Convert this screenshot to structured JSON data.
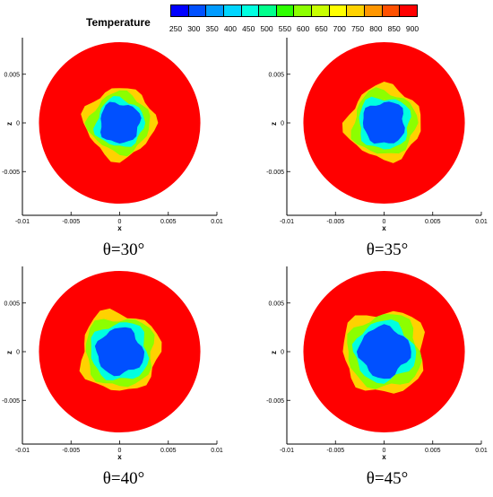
{
  "legend": {
    "title": "Temperature",
    "ticks": [
      "250",
      "300",
      "350",
      "400",
      "450",
      "500",
      "550",
      "600",
      "650",
      "700",
      "750",
      "800",
      "850",
      "900"
    ],
    "colors": [
      "#0000ff",
      "#0050ff",
      "#009bff",
      "#00d5ff",
      "#00ffe0",
      "#00ff8c",
      "#2eff00",
      "#8cff00",
      "#c8ff00",
      "#ffff00",
      "#ffd200",
      "#ff9600",
      "#ff5000",
      "#ff0000"
    ]
  },
  "chart_data": [
    {
      "type": "heatmap",
      "title": "θ=30°",
      "xlabel": "x",
      "ylabel": "z",
      "xlim": [
        -0.01,
        0.01
      ],
      "ylim": [
        -0.008,
        0.008
      ],
      "xticks": [
        "-0.01",
        "-0.005",
        "0",
        "0.005",
        "0.01"
      ],
      "yticks": [
        "0.005",
        "0",
        "-0.005"
      ],
      "domain_radius": 0.0083,
      "contour_levels": [
        {
          "temperature": 900,
          "radius": 0.0083
        },
        {
          "temperature": 750,
          "radius": 0.0036
        },
        {
          "temperature": 600,
          "radius": 0.0031
        },
        {
          "temperature": 450,
          "radius": 0.0025
        },
        {
          "temperature": 300,
          "radius": 0.0021
        }
      ]
    },
    {
      "type": "heatmap",
      "title": "θ=35°",
      "xlabel": "x",
      "ylabel": "z",
      "xlim": [
        -0.01,
        0.01
      ],
      "ylim": [
        -0.008,
        0.008
      ],
      "xticks": [
        "-0.01",
        "-0.005",
        "0",
        "0.005",
        "0.01"
      ],
      "yticks": [
        "0.005",
        "0",
        "-0.005"
      ],
      "domain_radius": 0.0083,
      "contour_levels": [
        {
          "temperature": 900,
          "radius": 0.0083
        },
        {
          "temperature": 750,
          "radius": 0.0038
        },
        {
          "temperature": 600,
          "radius": 0.0033
        },
        {
          "temperature": 450,
          "radius": 0.0027
        },
        {
          "temperature": 300,
          "radius": 0.0022
        }
      ]
    },
    {
      "type": "heatmap",
      "title": "θ=40°",
      "xlabel": "x",
      "ylabel": "z",
      "xlim": [
        -0.01,
        0.01
      ],
      "ylim": [
        -0.008,
        0.008
      ],
      "xticks": [
        "-0.01",
        "-0.005",
        "0",
        "0.005",
        "0.01"
      ],
      "yticks": [
        "0.005",
        "0",
        "-0.005"
      ],
      "domain_radius": 0.0083,
      "contour_levels": [
        {
          "temperature": 900,
          "radius": 0.0083
        },
        {
          "temperature": 750,
          "radius": 0.0041
        },
        {
          "temperature": 600,
          "radius": 0.0036
        },
        {
          "temperature": 450,
          "radius": 0.003
        },
        {
          "temperature": 300,
          "radius": 0.0024
        }
      ]
    },
    {
      "type": "heatmap",
      "title": "θ=45°",
      "xlabel": "x",
      "ylabel": "z",
      "xlim": [
        -0.01,
        0.01
      ],
      "ylim": [
        -0.008,
        0.008
      ],
      "xticks": [
        "-0.01",
        "-0.005",
        "0",
        "0.005",
        "0.01"
      ],
      "yticks": [
        "0.005",
        "0",
        "-0.005"
      ],
      "domain_radius": 0.0083,
      "contour_levels": [
        {
          "temperature": 900,
          "radius": 0.0083
        },
        {
          "temperature": 750,
          "radius": 0.0043
        },
        {
          "temperature": 600,
          "radius": 0.0038
        },
        {
          "temperature": 450,
          "radius": 0.0031
        },
        {
          "temperature": 300,
          "radius": 0.0026
        }
      ]
    }
  ]
}
